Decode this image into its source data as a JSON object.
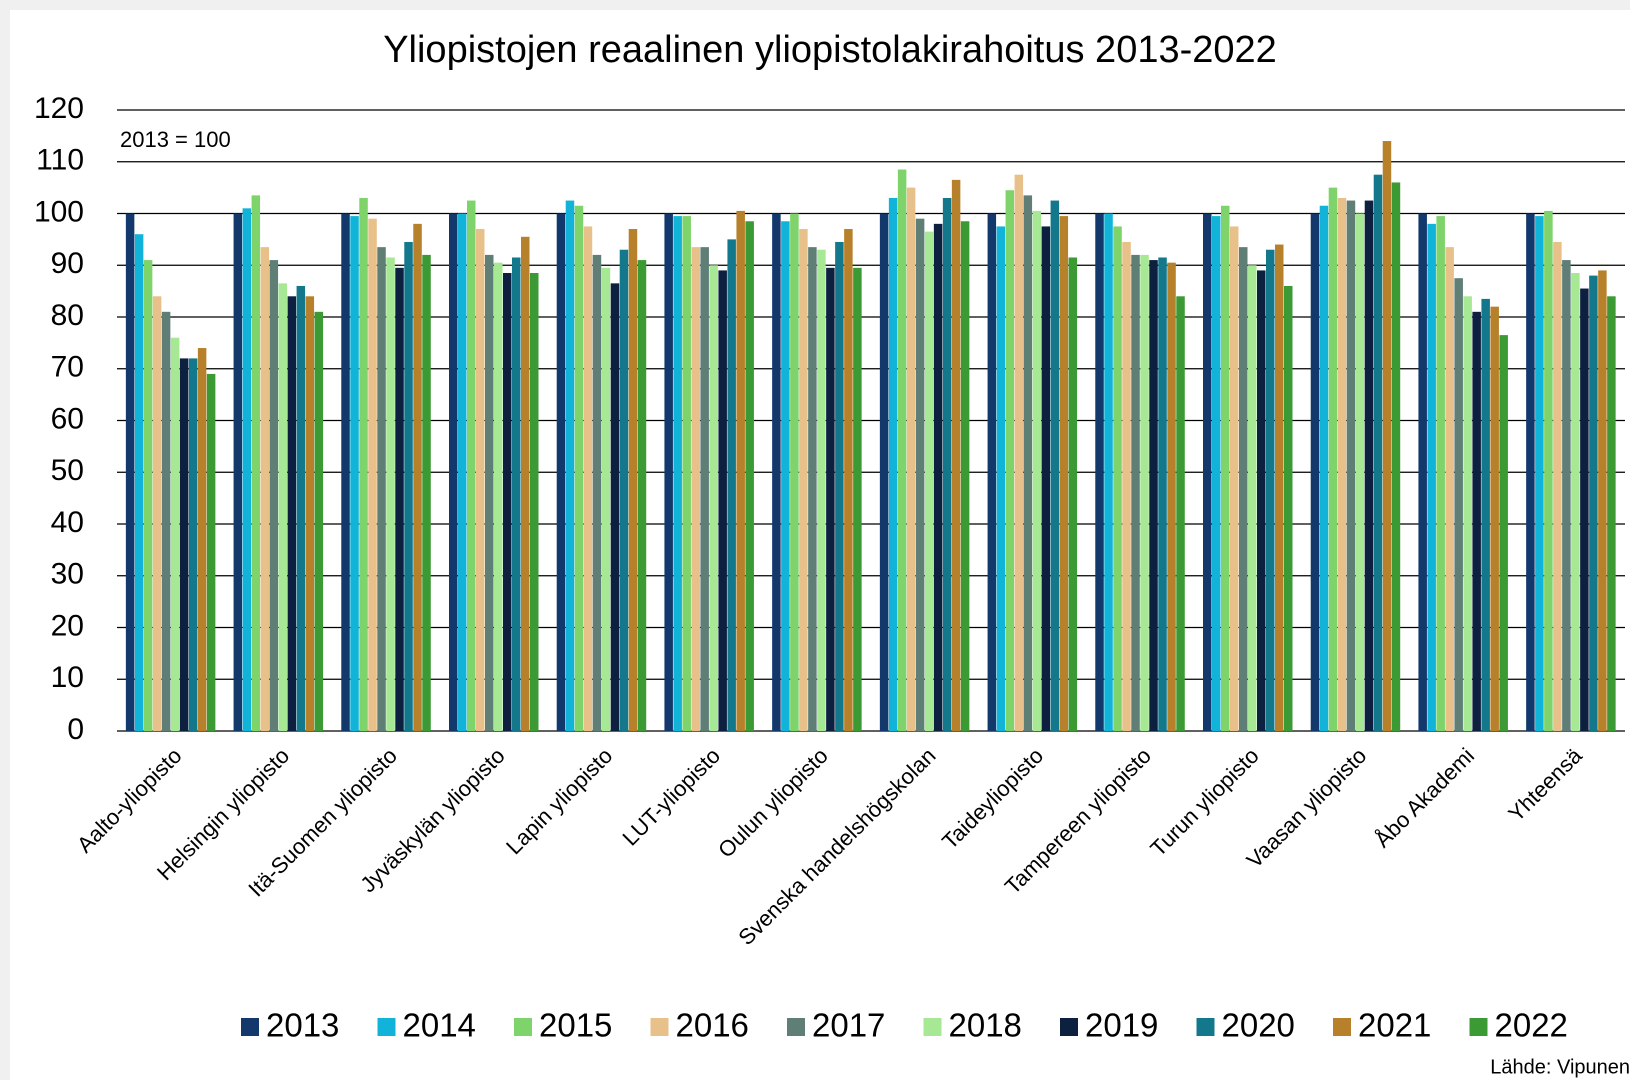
{
  "chart_data": {
    "type": "bar",
    "title": "Yliopistojen reaalinen yliopistolakirahoitus 2013-2022",
    "annotation": "2013 = 100",
    "source": "Lähde: Vipunen",
    "categories": [
      "Aalto-yliopisto",
      "Helsingin yliopisto",
      "Itä-Suomen yliopisto",
      "Jyväskylän yliopisto",
      "Lapin yliopisto",
      "LUT-yliopisto",
      "Oulun yliopisto",
      "Svenska handelshögskolan",
      "Taideyliopisto",
      "Tampereen yliopisto",
      "Turun yliopisto",
      "Vaasan yliopisto",
      "Åbo Akademi",
      "Yhteensä"
    ],
    "series": [
      {
        "name": "2013",
        "color": "#12386c",
        "values": [
          100,
          100,
          100,
          100,
          100,
          100,
          100,
          100,
          100,
          100,
          100,
          100,
          100,
          100
        ]
      },
      {
        "name": "2014",
        "color": "#11b4d8",
        "values": [
          96,
          101,
          99.5,
          100,
          102.5,
          99.5,
          98.5,
          103,
          97.5,
          100,
          99.5,
          101.5,
          98,
          99.5
        ]
      },
      {
        "name": "2015",
        "color": "#7ed36a",
        "values": [
          91,
          103.5,
          103,
          102.5,
          101.5,
          99.5,
          100,
          108.5,
          104.5,
          97.5,
          101.5,
          105,
          99.5,
          100.5
        ]
      },
      {
        "name": "2016",
        "color": "#e8c089",
        "values": [
          84,
          93.5,
          99,
          97,
          97.5,
          93.5,
          97,
          105,
          107.5,
          94.5,
          97.5,
          103,
          93.5,
          94.5
        ]
      },
      {
        "name": "2017",
        "color": "#5e7e76",
        "values": [
          81,
          91,
          93.5,
          92,
          92,
          93.5,
          93.5,
          99,
          103.5,
          92,
          93.5,
          102.5,
          87.5,
          91
        ]
      },
      {
        "name": "2018",
        "color": "#a6e894",
        "values": [
          76,
          86.5,
          91.5,
          90.5,
          89.5,
          90,
          93,
          96.5,
          100.5,
          92,
          90,
          100,
          84,
          88.5
        ]
      },
      {
        "name": "2019",
        "color": "#0d2040",
        "values": [
          72,
          84,
          89.5,
          88.5,
          86.5,
          89,
          89.5,
          98,
          97.5,
          91,
          89,
          102.5,
          81,
          85.5
        ]
      },
      {
        "name": "2020",
        "color": "#13788c",
        "values": [
          72,
          86,
          94.5,
          91.5,
          93,
          95,
          94.5,
          103,
          102.5,
          91.5,
          93,
          107.5,
          83.5,
          88
        ]
      },
      {
        "name": "2021",
        "color": "#b7802a",
        "values": [
          74,
          84,
          98,
          95.5,
          97,
          100.5,
          97,
          106.5,
          99.5,
          90.5,
          94,
          114,
          82,
          89
        ]
      },
      {
        "name": "2022",
        "color": "#3c9a35",
        "values": [
          69,
          81,
          92,
          88.5,
          91,
          98.5,
          89.5,
          98.5,
          91.5,
          84,
          86,
          106,
          76.5,
          84
        ]
      }
    ],
    "ylim": [
      0,
      120
    ],
    "yticks": [
      0,
      10,
      20,
      30,
      40,
      50,
      60,
      70,
      80,
      90,
      100,
      110,
      120
    ],
    "grid": true
  }
}
